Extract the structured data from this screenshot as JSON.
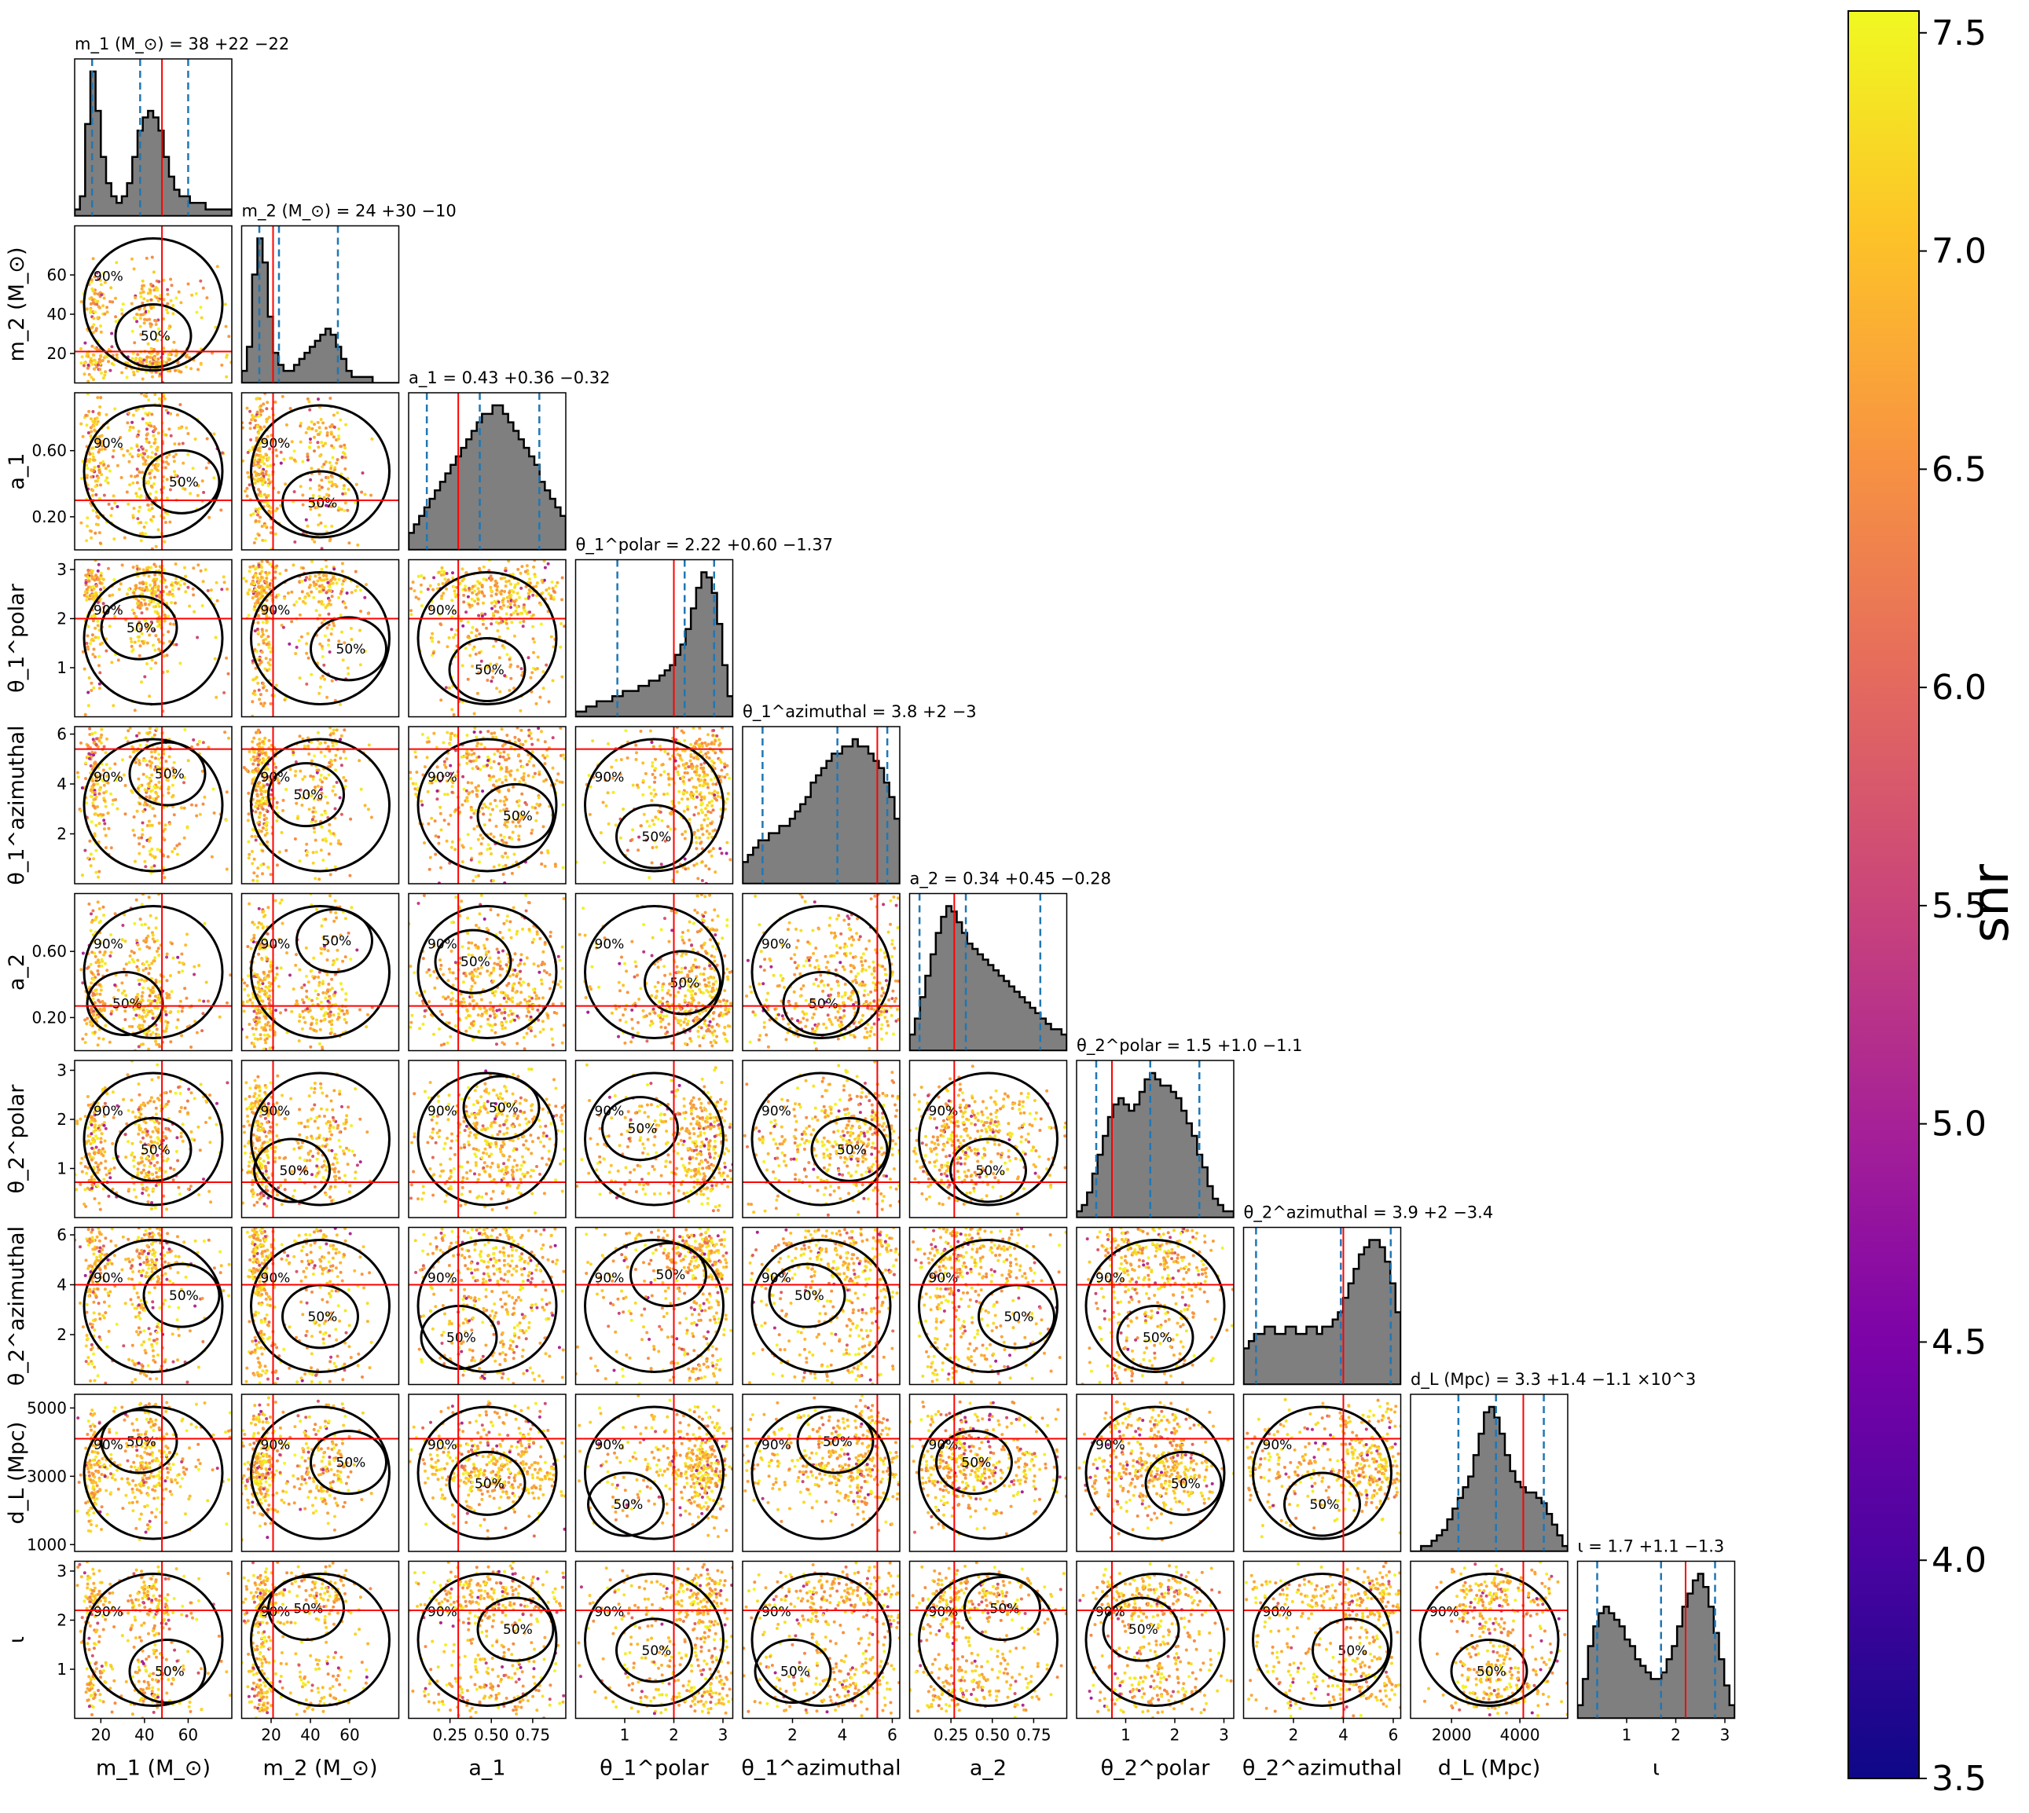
{
  "chart_data": {
    "type": "corner",
    "parameters": [
      {
        "key": "m1",
        "label": "m_1 (M_⊙)",
        "title": "m_1 (M_⊙) = 38 +22 −22",
        "truth": 48,
        "range": [
          8,
          80
        ],
        "ticks": [
          20,
          40,
          60
        ],
        "quantiles": [
          16,
          38,
          60
        ],
        "hist": [
          1,
          3,
          14,
          22,
          16,
          9,
          5,
          3,
          2,
          3,
          5,
          9,
          13,
          15,
          16,
          15,
          13,
          9,
          6,
          4,
          3,
          3,
          2,
          2,
          2,
          1,
          1,
          1,
          1,
          1
        ]
      },
      {
        "key": "m2",
        "label": "m_2 (M_⊙)",
        "title": "m_2 (M_⊙) = 24 +30 −10",
        "truth": 21,
        "range": [
          5,
          85
        ],
        "ticks": [
          20,
          40,
          60
        ],
        "quantiles": [
          14,
          24,
          54
        ],
        "hist": [
          2,
          6,
          18,
          24,
          20,
          11,
          5,
          3,
          2,
          2,
          3,
          4,
          5,
          6,
          7,
          8,
          9,
          8,
          6,
          4,
          2,
          1,
          1,
          1,
          1,
          0,
          0,
          0,
          0,
          0
        ]
      },
      {
        "key": "a1",
        "label": "a_1",
        "title": "a_1 = 0.43 +0.36 −0.32",
        "truth": 0.3,
        "range": [
          0.0,
          0.95
        ],
        "ticks": [
          0.25,
          0.5,
          0.75
        ],
        "quantiles": [
          0.11,
          0.43,
          0.79
        ],
        "hist": [
          2,
          3,
          4,
          5,
          6,
          7,
          8,
          9,
          10,
          11,
          12,
          13,
          14,
          15,
          16,
          16,
          17,
          17,
          16,
          15,
          14,
          13,
          12,
          11,
          10,
          8,
          7,
          6,
          5,
          4
        ]
      },
      {
        "key": "theta1_polar",
        "label": "θ_1^polar",
        "title": "θ_1^polar = 2.22 +0.60 −1.37",
        "truth": 2.0,
        "range": [
          0.0,
          3.2
        ],
        "ticks": [
          1,
          2,
          3
        ],
        "quantiles": [
          0.85,
          2.22,
          2.82
        ],
        "hist": [
          1,
          1,
          2,
          2,
          3,
          3,
          3,
          4,
          4,
          5,
          5,
          5,
          6,
          6,
          7,
          7,
          8,
          9,
          10,
          12,
          14,
          17,
          21,
          25,
          28,
          27,
          24,
          18,
          10,
          4
        ]
      },
      {
        "key": "theta1_azimuthal",
        "label": "θ_1^azimuthal",
        "title": "θ_1^azimuthal = 3.8 +2 −3",
        "truth": 5.4,
        "range": [
          0.0,
          6.3
        ],
        "ticks": [
          2,
          4,
          6
        ],
        "quantiles": [
          0.8,
          3.8,
          5.8
        ],
        "hist": [
          3,
          4,
          5,
          6,
          6,
          7,
          7,
          8,
          8,
          9,
          10,
          11,
          12,
          14,
          15,
          16,
          17,
          18,
          18,
          19,
          19,
          20,
          19,
          19,
          18,
          17,
          16,
          14,
          12,
          9
        ]
      },
      {
        "key": "a2",
        "label": "a_2",
        "title": "a_2 = 0.34 +0.45 −0.28",
        "truth": 0.27,
        "range": [
          0.0,
          0.95
        ],
        "ticks": [
          0.25,
          0.5,
          0.75
        ],
        "quantiles": [
          0.06,
          0.34,
          0.79
        ],
        "hist": [
          3,
          6,
          10,
          14,
          18,
          22,
          25,
          27,
          26,
          24,
          22,
          20,
          19,
          18,
          17,
          16,
          15,
          14,
          13,
          12,
          11,
          10,
          9,
          8,
          7,
          6,
          5,
          4,
          4,
          3
        ]
      },
      {
        "key": "theta2_polar",
        "label": "θ_2^polar",
        "title": "θ_2^polar = 1.5 +1.0 −1.1",
        "truth": 0.72,
        "range": [
          0.0,
          3.2
        ],
        "ticks": [
          1,
          2,
          3
        ],
        "quantiles": [
          0.4,
          1.5,
          2.5
        ],
        "hist": [
          1,
          2,
          4,
          7,
          10,
          13,
          16,
          18,
          19,
          18,
          17,
          18,
          20,
          22,
          23,
          22,
          21,
          21,
          20,
          19,
          17,
          15,
          13,
          10,
          8,
          5,
          3,
          2,
          1,
          1
        ]
      },
      {
        "key": "theta2_azimuthal",
        "label": "θ_2^azimuthal",
        "title": "θ_2^azimuthal = 3.9 +2 −3.4",
        "truth": 4.0,
        "range": [
          0.0,
          6.3
        ],
        "ticks": [
          2,
          4,
          6
        ],
        "quantiles": [
          0.5,
          3.9,
          5.9
        ],
        "hist": [
          5,
          6,
          7,
          7,
          8,
          8,
          7,
          7,
          8,
          8,
          7,
          7,
          8,
          8,
          7,
          8,
          8,
          9,
          10,
          12,
          14,
          16,
          18,
          19,
          20,
          20,
          19,
          17,
          14,
          10
        ]
      },
      {
        "key": "dL",
        "label": "d_L (Mpc)",
        "title": "d_L (Mpc) = 3.3 +1.4 −1.1 ×10^3",
        "truth": 4100,
        "range": [
          800,
          5400
        ],
        "ticks": [
          2000,
          4000
        ],
        "quantiles": [
          2200,
          3300,
          4700
        ],
        "hist": [
          0,
          0,
          1,
          1,
          2,
          3,
          4,
          6,
          8,
          10,
          12,
          14,
          18,
          22,
          26,
          27,
          25,
          22,
          18,
          15,
          13,
          12,
          11,
          11,
          10,
          9,
          7,
          5,
          3,
          1
        ]
      },
      {
        "key": "iota",
        "label": "ι",
        "title": "ι = 1.7 +1.1 −1.3",
        "truth": 2.2,
        "range": [
          0.0,
          3.2
        ],
        "ticks": [
          1,
          2,
          3
        ],
        "quantiles": [
          0.4,
          1.7,
          2.8
        ],
        "hist": [
          2,
          6,
          11,
          14,
          16,
          17,
          16,
          15,
          14,
          12,
          11,
          9,
          8,
          7,
          6,
          6,
          7,
          9,
          11,
          14,
          17,
          19,
          21,
          22,
          20,
          17,
          13,
          9,
          5,
          2
        ]
      }
    ],
    "y_tick_overrides": {
      "m2": [
        20,
        40,
        60
      ],
      "a1": [
        0.2,
        0.6
      ],
      "a2": [
        0.2,
        0.6
      ],
      "dL": [
        1000,
        3000,
        5000
      ]
    },
    "contour_levels": [
      "50%",
      "90%"
    ],
    "truth_color": "#ff0000",
    "quantile_color": "#1f77b4",
    "histogram_fill": "#7f7f7f",
    "colorbar": {
      "label": "snr",
      "min": 3.5,
      "max": 7.55,
      "ticks": [
        "3.5",
        "4.0",
        "4.5",
        "5.0",
        "5.5",
        "6.0",
        "6.5",
        "7.0",
        "7.5"
      ],
      "colormap": "plasma"
    }
  }
}
